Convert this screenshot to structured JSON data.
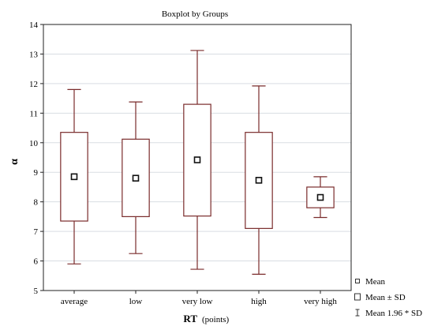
{
  "chart_data": {
    "type": "boxplot",
    "title": "Boxplot by Groups",
    "xlabel": "RT",
    "xlabel_unit": "(points)",
    "ylabel": "α",
    "ylim": [
      5,
      14
    ],
    "yticks": [
      5,
      6,
      7,
      8,
      9,
      10,
      11,
      12,
      13,
      14
    ],
    "grid": true,
    "legend_position": "bottom-right",
    "categories": [
      "average",
      "low",
      "very low",
      "high",
      "very high"
    ],
    "stats": [
      {
        "mean": 8.85,
        "sd_low": 7.35,
        "sd_high": 10.35,
        "whisker_low": 5.9,
        "whisker_high": 11.8
      },
      {
        "mean": 8.8,
        "sd_low": 7.5,
        "sd_high": 10.12,
        "whisker_low": 6.25,
        "whisker_high": 11.38
      },
      {
        "mean": 9.42,
        "sd_low": 7.52,
        "sd_high": 11.3,
        "whisker_low": 5.72,
        "whisker_high": 13.12
      },
      {
        "mean": 8.73,
        "sd_low": 7.1,
        "sd_high": 10.35,
        "whisker_low": 5.55,
        "whisker_high": 11.92
      },
      {
        "mean": 8.15,
        "sd_low": 7.8,
        "sd_high": 8.5,
        "whisker_low": 7.47,
        "whisker_high": 8.85
      }
    ],
    "legend": [
      {
        "symbol": "mean",
        "label": "Mean"
      },
      {
        "symbol": "box",
        "label": "Mean ± SD"
      },
      {
        "symbol": "whisker",
        "label": "Mean 1.96 * SD"
      }
    ]
  },
  "colors": {
    "box": "#7a2b2b",
    "grid": "#d9dde3",
    "axis": "#222222"
  }
}
